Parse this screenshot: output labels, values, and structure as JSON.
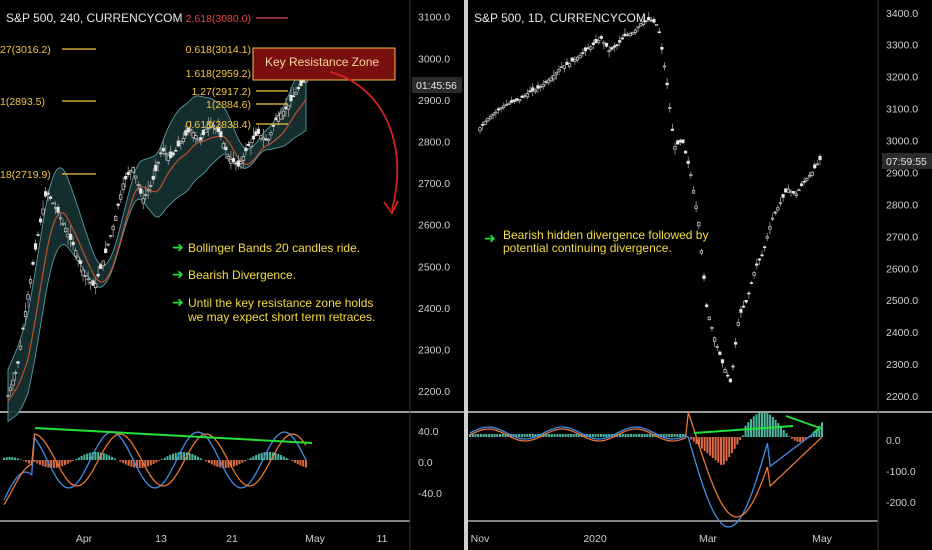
{
  "left": {
    "title": "S&P 500, 240, CURRENCYCOM",
    "price_badge": "01:45:56",
    "callout": "Key Resistance Zone",
    "notes": [
      "Bollinger Bands 20 candles ride.",
      "Bearish Divergence.",
      "Until the key resistance zone holds",
      "we may expect short term retraces."
    ],
    "fib_left": [
      "27(3016.2)",
      "1(2893.5)",
      "18(2719.9)"
    ],
    "fib_right": [
      "2.618(3080.0)",
      "0.618(3014.1)",
      "1.618(2959.2)",
      "1.27(2917.2)",
      "1(2884.6)",
      "0.618(2838.4)"
    ],
    "colors": {
      "up": "#e6e6e6",
      "down": "#8c8c8c",
      "band": "#1e3a3c",
      "ma": "#c0502a",
      "fib": "#f5c542",
      "arrow": "#d42020",
      "green": "#22e03a"
    }
  },
  "right": {
    "title": "S&P 500, 1D, CURRENCYCOM",
    "price_badge": "07:59:55",
    "notes": [
      "Bearish hidden divergence followed by",
      "potential continuing divergence."
    ]
  },
  "chart_data": [
    {
      "type": "candlestick",
      "title": "S&P 500, 240, CURRENCYCOM",
      "y_ticks": [
        3100.0,
        3000.0,
        2900.0,
        2800.0,
        2700.0,
        2600.0,
        2500.0,
        2400.0,
        2300.0,
        2200.0
      ],
      "x_ticks": [
        "Apr",
        "13",
        "21",
        "May",
        "11"
      ],
      "ylim": [
        2150,
        3140
      ],
      "close_path": [
        2190,
        2260,
        2420,
        2560,
        2680,
        2640,
        2590,
        2540,
        2480,
        2450,
        2520,
        2600,
        2700,
        2740,
        2660,
        2700,
        2780,
        2760,
        2800,
        2830,
        2800,
        2850,
        2820,
        2760,
        2740,
        2790,
        2820,
        2800,
        2860,
        2880,
        2920,
        2950
      ],
      "indicator": {
        "name": "MACD",
        "ticks": [
          40.0,
          0.0,
          -40.0
        ]
      }
    },
    {
      "type": "candlestick",
      "title": "S&P 500, 1D, CURRENCYCOM",
      "y_ticks": [
        3400.0,
        3300.0,
        3200.0,
        3100.0,
        3000.0,
        2900.0,
        2800.0,
        2700.0,
        2600.0,
        2500.0,
        2400.0,
        2300.0,
        2200.0
      ],
      "x_ticks": [
        "Nov",
        "2020",
        "Mar",
        "May"
      ],
      "ylim": [
        2150,
        3440
      ],
      "close_path": [
        3040,
        3070,
        3090,
        3110,
        3120,
        3130,
        3150,
        3160,
        3180,
        3200,
        3230,
        3240,
        3260,
        3280,
        3300,
        3320,
        3280,
        3300,
        3330,
        3340,
        3370,
        3380,
        3360,
        3200,
        2980,
        3000,
        2900,
        2750,
        2480,
        2380,
        2300,
        2240,
        2450,
        2500,
        2600,
        2650,
        2750,
        2800,
        2850,
        2830,
        2870,
        2900,
        2940
      ],
      "indicator": {
        "name": "MACD",
        "ticks": [
          0.0,
          -100.0,
          -200.0
        ]
      }
    }
  ]
}
